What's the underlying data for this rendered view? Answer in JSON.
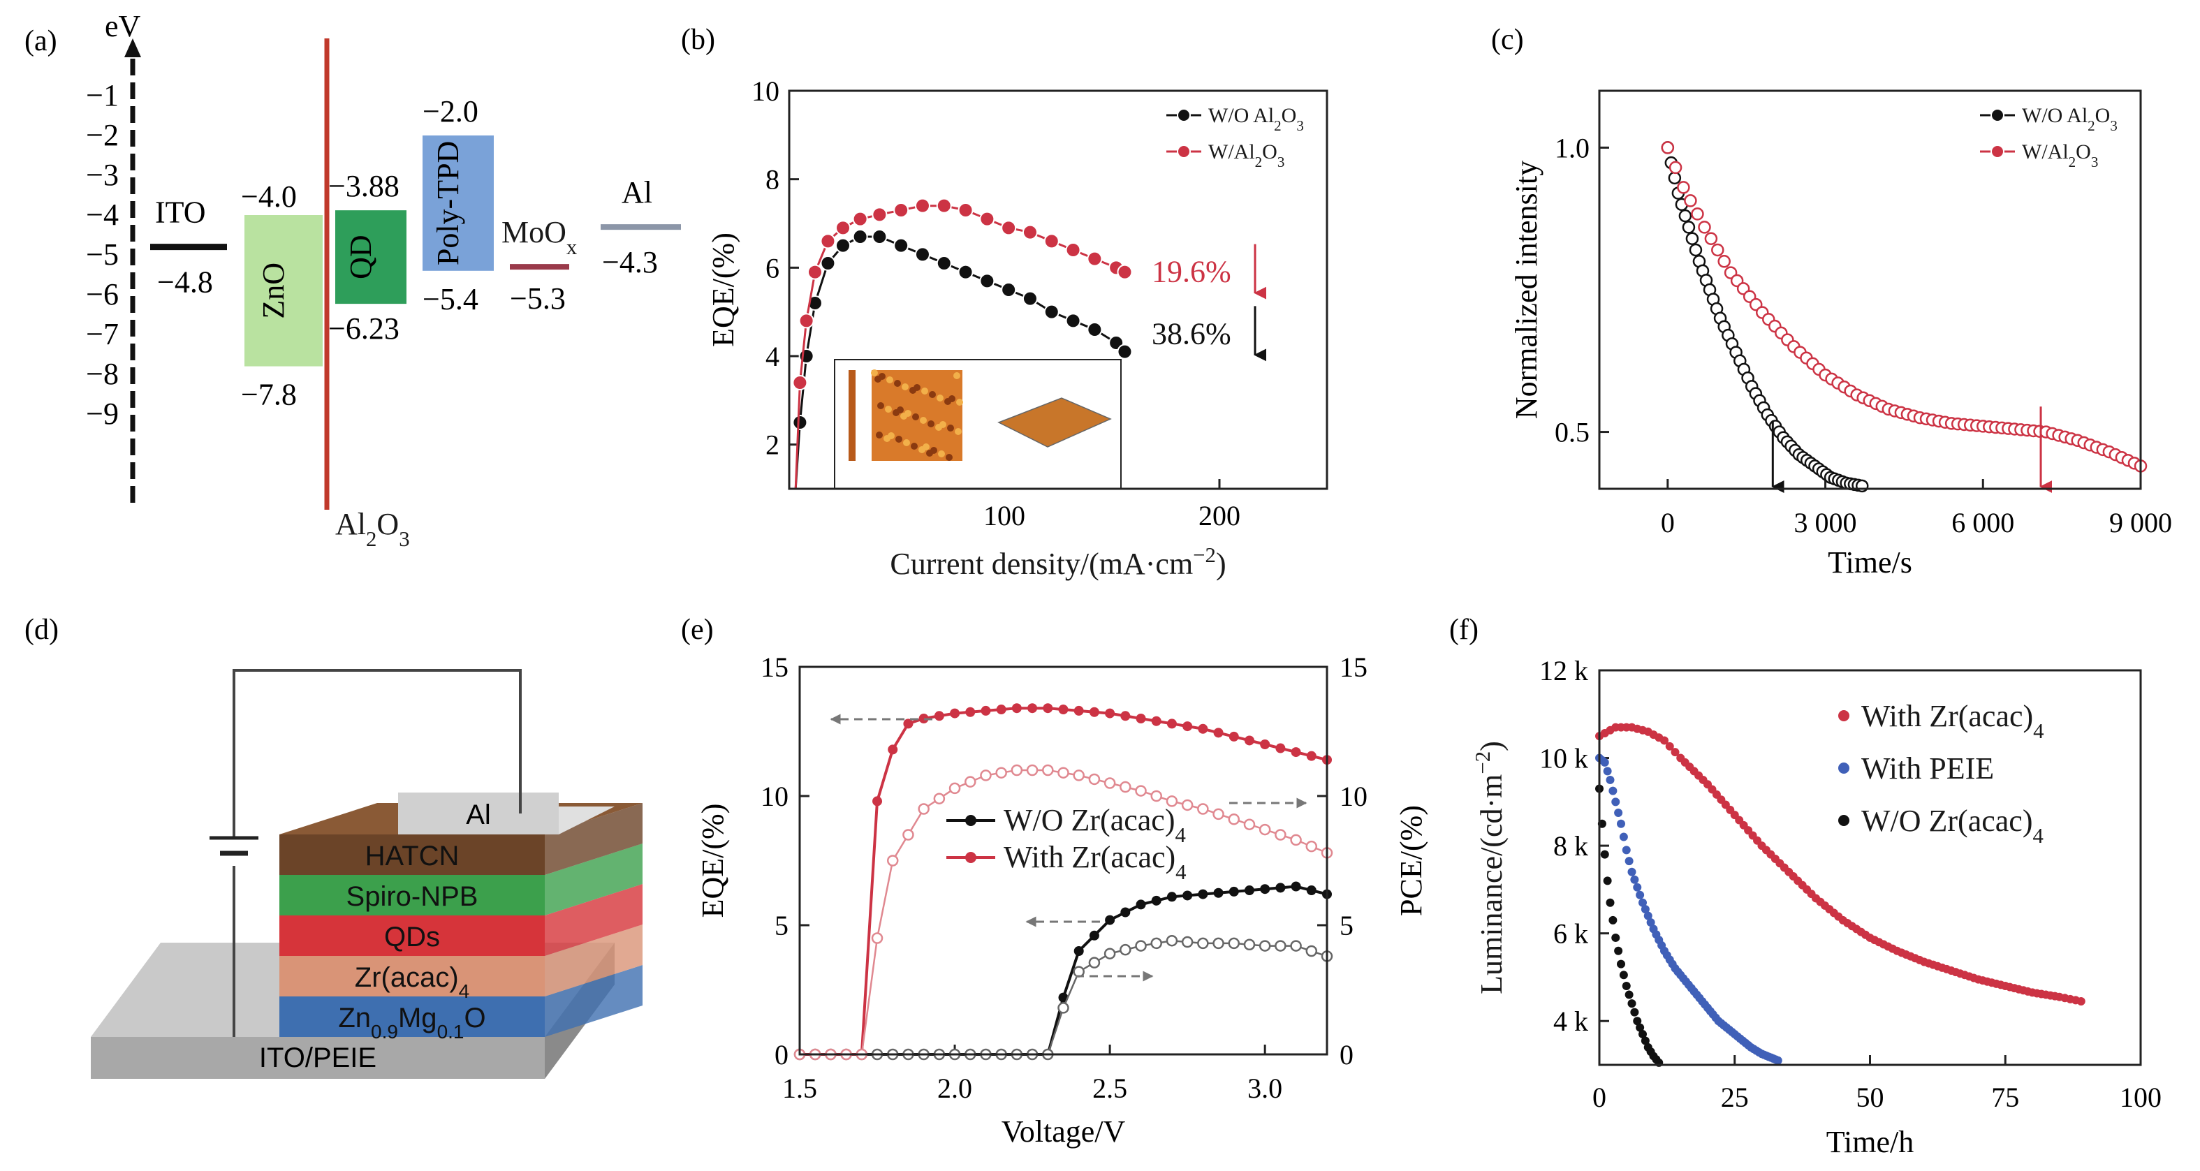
{
  "panels": {
    "a": {
      "label": "(a)",
      "y_unit": "eV",
      "y_ticks": [
        "−1",
        "−2",
        "−3",
        "−4",
        "−5",
        "−6",
        "−7",
        "−8",
        "−9"
      ],
      "materials": [
        {
          "name": "ITO",
          "upper": "",
          "lower": "−4.8",
          "color": "#111111"
        },
        {
          "name": "ZnO",
          "upper": "−4.0",
          "lower": "−7.8",
          "color": "#b9e2a0"
        },
        {
          "name": "QD",
          "upper": "−3.88",
          "lower": "−6.23",
          "color": "#2e9e5a"
        },
        {
          "name": "Poly-TPD",
          "upper": "−2.0",
          "lower": "−5.4",
          "color": "#7aa2d8"
        },
        {
          "name": "MoOx",
          "upper": "",
          "lower": "−5.3",
          "color": "#9a3a4a"
        },
        {
          "name": "Al",
          "upper": "",
          "lower": "−4.3",
          "color": "#8c96a8"
        }
      ],
      "interlayer": "Al2O3",
      "interlayer_color": "#c0392b"
    },
    "d": {
      "label": "(d)",
      "layers": [
        "Al",
        "HATCN",
        "Spiro-NPB",
        "QDs",
        "Zr(acac)4",
        "Zn0.9Mg0.1O",
        "ITO/PEIE"
      ]
    }
  },
  "chart_data": [
    {
      "id": "b",
      "label": "(b)",
      "type": "line",
      "xlabel": "Current density/(mA·cm⁻²)",
      "ylabel": "EQE/(%)",
      "xlim": [
        0,
        250
      ],
      "ylim": [
        1,
        10
      ],
      "x_ticks": [
        100,
        200
      ],
      "y_ticks": [
        2,
        4,
        6,
        8,
        10
      ],
      "legend_position": "top-right",
      "series": [
        {
          "name": "W/O Al2O3",
          "color": "#111111",
          "x": [
            3,
            5,
            8,
            12,
            18,
            25,
            33,
            42,
            52,
            62,
            72,
            82,
            92,
            102,
            112,
            122,
            132,
            142,
            152,
            156
          ],
          "y": [
            1.0,
            2.5,
            4.0,
            5.2,
            6.1,
            6.5,
            6.7,
            6.7,
            6.5,
            6.3,
            6.1,
            5.9,
            5.7,
            5.5,
            5.3,
            5.0,
            4.8,
            4.6,
            4.3,
            4.1
          ]
        },
        {
          "name": "W/Al2O3",
          "color": "#cc3344",
          "x": [
            3,
            5,
            8,
            12,
            18,
            25,
            33,
            42,
            52,
            62,
            72,
            82,
            92,
            102,
            112,
            122,
            132,
            142,
            152,
            156
          ],
          "y": [
            1.0,
            3.4,
            4.8,
            5.9,
            6.6,
            6.9,
            7.1,
            7.2,
            7.3,
            7.4,
            7.4,
            7.3,
            7.1,
            6.9,
            6.8,
            6.6,
            6.4,
            6.2,
            6.0,
            5.9
          ]
        }
      ],
      "annotations": [
        {
          "text": "19.6%",
          "color": "#cc3344",
          "x": 175,
          "y": 5.9
        },
        {
          "text": "38.6%",
          "color": "#111111",
          "x": 175,
          "y": 4.5
        }
      ]
    },
    {
      "id": "c",
      "label": "(c)",
      "type": "line",
      "xlabel": "Time/s",
      "ylabel": "Normalized intensity",
      "xlim": [
        -1300,
        9000
      ],
      "ylim": [
        0.4,
        1.1
      ],
      "x_ticks": [
        0,
        3000,
        6000,
        9000
      ],
      "x_tick_labels": [
        "0",
        "3 000",
        "6 000",
        "9 000"
      ],
      "y_ticks": [
        0.5,
        1.0
      ],
      "y_tick_labels": [
        "0.5",
        "1.0"
      ],
      "legend_position": "top-right",
      "series": [
        {
          "name": "W/O Al2O3",
          "color": "#111111",
          "x": [
            0,
            200,
            400,
            600,
            800,
            1000,
            1300,
            1600,
            1900,
            2200,
            2500,
            2800,
            3100,
            3400,
            3700,
            4000,
            4200
          ],
          "y": [
            1.0,
            0.92,
            0.86,
            0.8,
            0.75,
            0.7,
            0.64,
            0.58,
            0.53,
            0.49,
            0.46,
            0.44,
            0.42,
            0.41,
            0.405,
            0.4,
            0.4
          ]
        },
        {
          "name": "W/Al2O3",
          "color": "#cc3344",
          "x": [
            0,
            300,
            700,
            1200,
            1800,
            2400,
            3000,
            3600,
            4200,
            4800,
            5400,
            6000,
            6600,
            7200,
            7800,
            8400,
            9000
          ],
          "y": [
            1.0,
            0.93,
            0.86,
            0.78,
            0.71,
            0.65,
            0.6,
            0.565,
            0.54,
            0.525,
            0.515,
            0.51,
            0.505,
            0.5,
            0.485,
            0.465,
            0.44
          ]
        }
      ],
      "arrows_at_x": [
        2000,
        7100
      ]
    },
    {
      "id": "e",
      "label": "(e)",
      "type": "line",
      "xlabel": "Voltage/V",
      "ylabel": "EQE/(%)",
      "y2label": "PCE/(%)",
      "xlim": [
        1.5,
        3.2
      ],
      "ylim": [
        0,
        15
      ],
      "y2lim": [
        0,
        15
      ],
      "x_ticks": [
        1.5,
        2.0,
        2.5,
        3.0
      ],
      "x_tick_labels": [
        "1.5",
        "2.0",
        "2.5",
        "3.0"
      ],
      "y_ticks": [
        0,
        5,
        10,
        15
      ],
      "legend_position": "center",
      "series": [
        {
          "name": "W/O Zr(acac)4",
          "color": "#111111",
          "style": "filled",
          "axis": "left",
          "x": [
            1.5,
            1.6,
            1.7,
            1.8,
            1.9,
            2.0,
            2.1,
            2.2,
            2.3,
            2.35,
            2.4,
            2.5,
            2.6,
            2.7,
            2.8,
            2.9,
            3.0,
            3.1,
            3.2
          ],
          "y": [
            0,
            0,
            0,
            0,
            0,
            0,
            0,
            0,
            0,
            2.2,
            4.0,
            5.2,
            5.8,
            6.1,
            6.2,
            6.3,
            6.4,
            6.5,
            6.2
          ]
        },
        {
          "name": "With Zr(acac)4",
          "color": "#cc3344",
          "style": "filled",
          "axis": "left",
          "x": [
            1.5,
            1.6,
            1.7,
            1.75,
            1.8,
            1.85,
            1.9,
            2.0,
            2.1,
            2.2,
            2.3,
            2.4,
            2.5,
            2.6,
            2.7,
            2.8,
            2.9,
            3.0,
            3.1,
            3.2
          ],
          "y": [
            0,
            0,
            0,
            9.8,
            11.8,
            12.8,
            13.0,
            13.2,
            13.3,
            13.4,
            13.4,
            13.3,
            13.2,
            13.0,
            12.8,
            12.6,
            12.3,
            12.0,
            11.7,
            11.4
          ]
        },
        {
          "name": "",
          "color": "#666666",
          "style": "open",
          "axis": "right",
          "x": [
            1.5,
            2.3,
            2.35,
            2.4,
            2.5,
            2.6,
            2.7,
            2.8,
            2.9,
            3.0,
            3.1,
            3.2
          ],
          "y": [
            0,
            0,
            1.8,
            3.2,
            3.9,
            4.2,
            4.4,
            4.3,
            4.3,
            4.2,
            4.2,
            3.8
          ]
        },
        {
          "name": "",
          "color": "#e08890",
          "style": "open",
          "axis": "right",
          "x": [
            1.5,
            1.7,
            1.75,
            1.8,
            1.9,
            2.0,
            2.1,
            2.2,
            2.3,
            2.4,
            2.5,
            2.6,
            2.7,
            2.8,
            2.9,
            3.0,
            3.1,
            3.2
          ],
          "y": [
            0,
            0,
            4.5,
            7.5,
            9.5,
            10.3,
            10.8,
            11.0,
            11.0,
            10.8,
            10.5,
            10.2,
            9.8,
            9.5,
            9.1,
            8.7,
            8.3,
            7.8
          ]
        }
      ]
    },
    {
      "id": "f",
      "label": "(f)",
      "type": "line",
      "xlabel": "Time/h",
      "ylabel": "Luminance/(cd·m⁻²)",
      "xlim": [
        0,
        100
      ],
      "ylim": [
        3000,
        12000
      ],
      "x_ticks": [
        0,
        25,
        50,
        75,
        100
      ],
      "y_ticks": [
        4000,
        6000,
        8000,
        10000,
        12000
      ],
      "y_tick_labels": [
        "4 k",
        "6 k",
        "8 k",
        "10 k",
        "12 k"
      ],
      "legend_position": "top-right",
      "series": [
        {
          "name": "With Zr(acac)4",
          "color": "#cc3344",
          "x": [
            0,
            3,
            6,
            9,
            12,
            15,
            20,
            25,
            30,
            35,
            40,
            45,
            50,
            55,
            60,
            65,
            70,
            75,
            80,
            85,
            89
          ],
          "y": [
            10500,
            10700,
            10700,
            10600,
            10400,
            10000,
            9400,
            8700,
            8000,
            7400,
            6800,
            6300,
            5900,
            5600,
            5350,
            5150,
            4950,
            4800,
            4650,
            4550,
            4450
          ]
        },
        {
          "name": "With PEIE",
          "color": "#4060b8",
          "x": [
            0,
            1,
            2,
            3,
            4,
            5,
            6,
            8,
            10,
            12,
            14,
            16,
            18,
            20,
            22,
            24,
            26,
            28,
            30,
            33
          ],
          "y": [
            10000,
            9900,
            9500,
            9000,
            8500,
            7900,
            7400,
            6700,
            6100,
            5600,
            5200,
            4900,
            4600,
            4300,
            4000,
            3800,
            3600,
            3400,
            3250,
            3100
          ]
        },
        {
          "name": "W/O Zr(acac)4",
          "color": "#111111",
          "x": [
            0,
            0.5,
            1,
            1.5,
            2,
            3,
            4,
            5,
            6,
            7,
            8,
            9,
            10,
            11
          ],
          "y": [
            9300,
            8500,
            7800,
            7200,
            6700,
            5900,
            5300,
            4800,
            4400,
            4000,
            3700,
            3400,
            3200,
            3050
          ]
        }
      ]
    }
  ]
}
